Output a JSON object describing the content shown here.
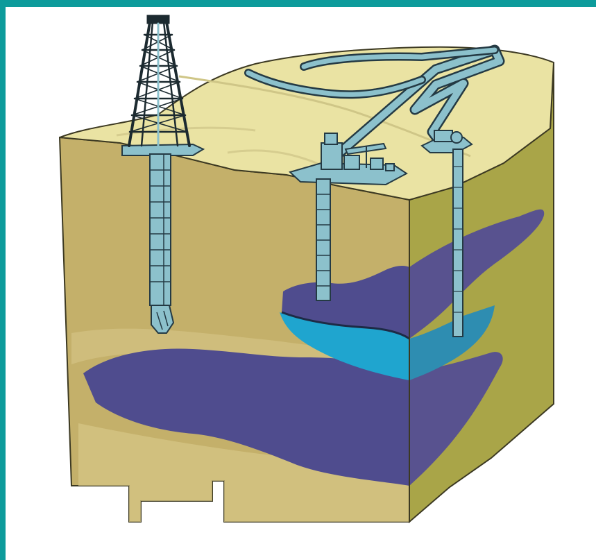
{
  "colors": {
    "teal_border": "#0d9b9b",
    "background": "#ffffff",
    "surface_sand": "#eae3a3",
    "soil_front": "#c4b06a",
    "soil_side": "#a9a548",
    "reservoir_purple": "#4f4c8e",
    "reservoir_side": "#58528f",
    "water_blue": "#1fa5cf",
    "water_side": "#2e8db1",
    "steel_blue": "#8cc1cc",
    "outline": "#243a44"
  },
  "icons": {
    "drilling_rig": "derrick-tower-icon",
    "pump_jack": "pumpjack-icon",
    "pipeline": "pipeline",
    "well_pipe": "well-casing"
  }
}
